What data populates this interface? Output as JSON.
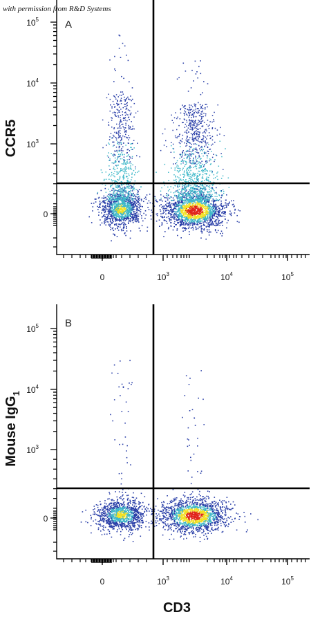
{
  "credit": "with permission from R&D Systems",
  "chart_data": [
    {
      "type": "scatter",
      "panel_label": "A",
      "ylabel": "CCR5",
      "ylabel_sub": "",
      "xlabel": "CD3",
      "x_ticks": [
        {
          "base": "0",
          "exp": ""
        },
        {
          "base": "10",
          "exp": "3"
        },
        {
          "base": "10",
          "exp": "4"
        },
        {
          "base": "10",
          "exp": "5"
        }
      ],
      "y_ticks": [
        {
          "base": "0",
          "exp": ""
        },
        {
          "base": "10",
          "exp": "3"
        },
        {
          "base": "10",
          "exp": "4"
        },
        {
          "base": "10",
          "exp": "5"
        }
      ],
      "quadrant_gate": {
        "x": 700,
        "y": 300
      },
      "populations": [
        {
          "name": "CD3- CCR5-",
          "center_x": 200,
          "center_y": 0,
          "percent_dense": "high"
        },
        {
          "name": "CD3+ CCR5-",
          "center_x": 2500,
          "center_y": 0,
          "percent_dense": "very high"
        },
        {
          "name": "CD3- CCR5+",
          "center_x": 200,
          "center_y": 1000,
          "percent_dense": "low"
        },
        {
          "name": "CD3+ CCR5+",
          "center_x": 2500,
          "center_y": 1000,
          "percent_dense": "medium"
        }
      ]
    },
    {
      "type": "scatter",
      "panel_label": "B",
      "ylabel": "Mouse IgG",
      "ylabel_sub": "1",
      "xlabel": "CD3",
      "x_ticks": [
        {
          "base": "0",
          "exp": ""
        },
        {
          "base": "10",
          "exp": "3"
        },
        {
          "base": "10",
          "exp": "4"
        },
        {
          "base": "10",
          "exp": "5"
        }
      ],
      "y_ticks": [
        {
          "base": "0",
          "exp": ""
        },
        {
          "base": "10",
          "exp": "3"
        },
        {
          "base": "10",
          "exp": "4"
        },
        {
          "base": "10",
          "exp": "5"
        }
      ],
      "quadrant_gate": {
        "x": 700,
        "y": 300
      },
      "populations": [
        {
          "name": "CD3- IgG1-",
          "center_x": 200,
          "center_y": 0,
          "percent_dense": "high"
        },
        {
          "name": "CD3+ IgG1-",
          "center_x": 2500,
          "center_y": 0,
          "percent_dense": "very high"
        },
        {
          "name": "CD3- IgG1+",
          "center_x": 200,
          "center_y": 2000,
          "percent_dense": "sparse"
        },
        {
          "name": "CD3+ IgG1+",
          "center_x": 2500,
          "center_y": 2000,
          "percent_dense": "sparse"
        }
      ]
    }
  ],
  "colors": {
    "axis": "#000000",
    "density_low": "#2a3fa8",
    "density_mid": "#3fb8c9",
    "density_high": "#f2e024",
    "density_peak": "#e0231b"
  }
}
